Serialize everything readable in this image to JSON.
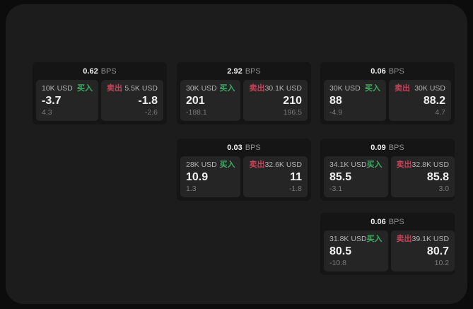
{
  "colors": {
    "backdrop": "#0c0c0c",
    "panel_bg": "#1c1c1c",
    "card_bg": "#151515",
    "tile_bg": "#252525",
    "buy": "#3dab62",
    "sell": "#c44258",
    "value_text": "#f0f0f0",
    "label_text": "#b3b3b3",
    "unit_text": "#8f8f8f",
    "delta_text": "#7a7a7a"
  },
  "cards": [
    {
      "bps_value": "0.62",
      "bps_unit": "BPS",
      "buy": {
        "amount": "10K USD",
        "side_label": "买入",
        "value": "-3.7",
        "delta": "4.3"
      },
      "sell": {
        "side_label": "卖出",
        "amount": "5.5K USD",
        "value": "-1.8",
        "delta": "-2.6"
      }
    },
    {
      "bps_value": "2.92",
      "bps_unit": "BPS",
      "buy": {
        "amount": "30K USD",
        "side_label": "买入",
        "value": "201",
        "delta": "-188.1"
      },
      "sell": {
        "side_label": "卖出",
        "amount": "30.1K USD",
        "value": "210",
        "delta": "196.5"
      }
    },
    {
      "bps_value": "0.06",
      "bps_unit": "BPS",
      "buy": {
        "amount": "30K USD",
        "side_label": "买入",
        "value": "88",
        "delta": "-4.9"
      },
      "sell": {
        "side_label": "卖出",
        "amount": "30K USD",
        "value": "88.2",
        "delta": "4.7"
      }
    },
    {
      "bps_value": "0.03",
      "bps_unit": "BPS",
      "buy": {
        "amount": "28K USD",
        "side_label": "买入",
        "value": "10.9",
        "delta": "1.3"
      },
      "sell": {
        "side_label": "卖出",
        "amount": "32.6K USD",
        "value": "11",
        "delta": "-1.8"
      }
    },
    {
      "bps_value": "0.09",
      "bps_unit": "BPS",
      "buy": {
        "amount": "34.1K USD",
        "side_label": "买入",
        "value": "85.5",
        "delta": "-3.1"
      },
      "sell": {
        "side_label": "卖出",
        "amount": "32.8K USD",
        "value": "85.8",
        "delta": "3.0"
      }
    },
    {
      "bps_value": "0.06",
      "bps_unit": "BPS",
      "buy": {
        "amount": "31.8K USD",
        "side_label": "买入",
        "value": "80.5",
        "delta": "-10.8"
      },
      "sell": {
        "side_label": "卖出",
        "amount": "39.1K USD",
        "value": "80.7",
        "delta": "10.2"
      }
    }
  ]
}
